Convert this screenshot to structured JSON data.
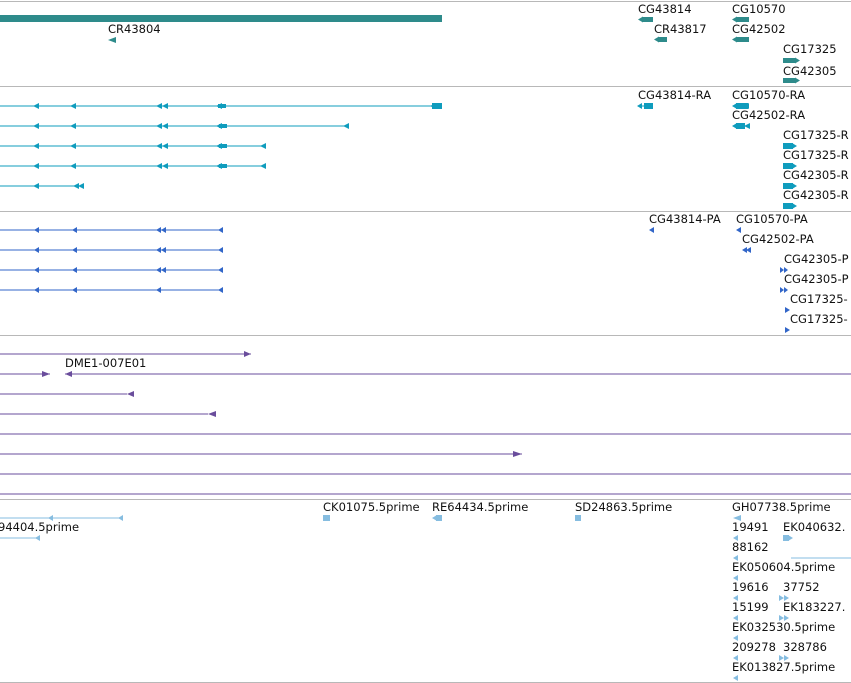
{
  "colors": {
    "gene": "#2e8b8b",
    "mrna": "#0f9cbd",
    "cds": "#3266c8",
    "cdna": "#6a4d9c",
    "est": "#86bde0",
    "separator": "#b8b8b8"
  },
  "tracks": [
    {
      "name": "gene",
      "color_key": "gene",
      "features": [
        {
          "id": "g-bar",
          "label": ""
        },
        {
          "id": "g-cr43804",
          "label": "CR43804"
        },
        {
          "id": "g-cg43814",
          "label": "CG43814"
        },
        {
          "id": "g-cg10570",
          "label": "CG10570"
        },
        {
          "id": "g-cr43817",
          "label": "CR43817"
        },
        {
          "id": "g-cg42502",
          "label": "CG42502"
        },
        {
          "id": "g-cg17325",
          "label": "CG17325"
        },
        {
          "id": "g-cg42305",
          "label": "CG42305"
        }
      ]
    },
    {
      "name": "mrna",
      "color_key": "mrna",
      "features": [
        {
          "id": "m-1",
          "label": ""
        },
        {
          "id": "m-2",
          "label": ""
        },
        {
          "id": "m-3",
          "label": ""
        },
        {
          "id": "m-4",
          "label": ""
        },
        {
          "id": "m-5",
          "label": ""
        },
        {
          "id": "m-cg43814ra",
          "label": "CG43814-RA"
        },
        {
          "id": "m-cg10570ra",
          "label": "CG10570-RA"
        },
        {
          "id": "m-cg42502ra",
          "label": "CG42502-RA"
        },
        {
          "id": "m-cg17325r1",
          "label": "CG17325-R"
        },
        {
          "id": "m-cg17325r2",
          "label": "CG17325-R"
        },
        {
          "id": "m-cg42305r1",
          "label": "CG42305-R"
        },
        {
          "id": "m-cg42305r2",
          "label": "CG42305-R"
        }
      ]
    },
    {
      "name": "cds",
      "color_key": "cds",
      "features": [
        {
          "id": "c-1",
          "label": ""
        },
        {
          "id": "c-2",
          "label": ""
        },
        {
          "id": "c-3",
          "label": ""
        },
        {
          "id": "c-4",
          "label": ""
        },
        {
          "id": "c-cg43814pa",
          "label": "CG43814-PA"
        },
        {
          "id": "c-cg10570pa",
          "label": "CG10570-PA"
        },
        {
          "id": "c-cg42502pa",
          "label": "CG42502-PA"
        },
        {
          "id": "c-cg42305p1",
          "label": "CG42305-P"
        },
        {
          "id": "c-cg42305p2",
          "label": "CG42305-P"
        },
        {
          "id": "c-cg17325p1",
          "label": "CG17325-"
        },
        {
          "id": "c-cg17325p2",
          "label": "CG17325-"
        }
      ]
    },
    {
      "name": "cdna",
      "color_key": "cdna",
      "features": [
        {
          "id": "d-1",
          "label": ""
        },
        {
          "id": "d-2",
          "label": ""
        },
        {
          "id": "d-dme1",
          "label": "DME1-007E01"
        },
        {
          "id": "d-3",
          "label": ""
        },
        {
          "id": "d-4",
          "label": ""
        },
        {
          "id": "d-5",
          "label": ""
        },
        {
          "id": "d-6",
          "label": ""
        },
        {
          "id": "d-7",
          "label": ""
        },
        {
          "id": "d-8",
          "label": ""
        }
      ]
    },
    {
      "name": "est",
      "color_key": "est",
      "features": [
        {
          "id": "e-94404",
          "label": "94404.5prime"
        },
        {
          "id": "e-ck01075",
          "label": "CK01075.5prime"
        },
        {
          "id": "e-re64434",
          "label": "RE64434.5prime"
        },
        {
          "id": "e-sd24863",
          "label": "SD24863.5prime"
        },
        {
          "id": "e-gh07738",
          "label": "GH07738.5prime"
        },
        {
          "id": "e-19491",
          "label": "19491"
        },
        {
          "id": "e-ek040632",
          "label": "EK040632."
        },
        {
          "id": "e-88162",
          "label": "88162"
        },
        {
          "id": "e-ek050604",
          "label": "EK050604.5prime"
        },
        {
          "id": "e-19616",
          "label": "19616"
        },
        {
          "id": "e-37752",
          "label": "37752"
        },
        {
          "id": "e-15199",
          "label": "15199"
        },
        {
          "id": "e-ek183227",
          "label": "EK183227."
        },
        {
          "id": "e-ek032530",
          "label": "EK032530.5prime"
        },
        {
          "id": "e-209278",
          "label": "209278"
        },
        {
          "id": "e-328786",
          "label": "328786"
        },
        {
          "id": "e-ek013827",
          "label": "EK013827.5prime"
        }
      ]
    }
  ]
}
